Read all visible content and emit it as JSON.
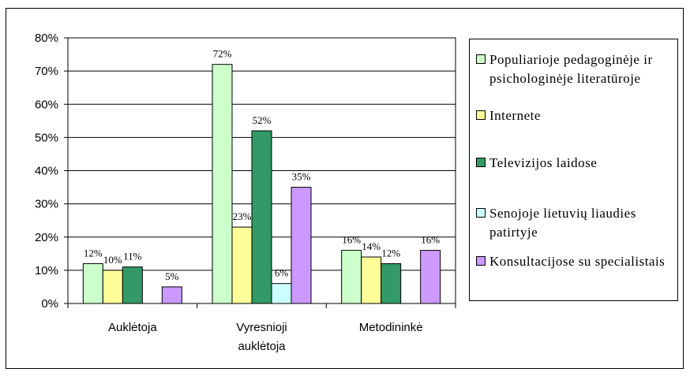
{
  "chart_data": {
    "type": "bar",
    "categories": [
      "Auklėtoja",
      "Vyresnioji\nauklėtoja",
      "Metodininkė"
    ],
    "series": [
      {
        "name": "Populiarioje pedagoginėje ir psichologinėje literatūroje",
        "color": "#ccffcc",
        "values": [
          12,
          72,
          16
        ],
        "labels": [
          "12%",
          "72%",
          "16%"
        ]
      },
      {
        "name": "Internete",
        "color": "#ffff99",
        "values": [
          10,
          23,
          14
        ],
        "labels": [
          "10%",
          "23%",
          "14%"
        ]
      },
      {
        "name": "Televizijos laidose",
        "color": "#339966",
        "values": [
          11,
          52,
          12
        ],
        "labels": [
          "11%",
          "52%",
          "12%"
        ]
      },
      {
        "name": "Senojoje lietuvių liaudies patirtyje",
        "color": "#ccffff",
        "values": [
          0,
          6,
          0
        ],
        "labels": [
          "",
          "6%",
          ""
        ]
      },
      {
        "name": "Konsultacijose su specialistais",
        "color": "#cc99ff",
        "values": [
          5,
          35,
          16
        ],
        "labels": [
          "5%",
          "35%",
          "16%"
        ]
      }
    ],
    "y_ticks": [
      "0%",
      "10%",
      "20%",
      "30%",
      "40%",
      "50%",
      "60%",
      "70%",
      "80%"
    ],
    "ylim": [
      0,
      80
    ],
    "grid": true,
    "legend_position": "right"
  }
}
